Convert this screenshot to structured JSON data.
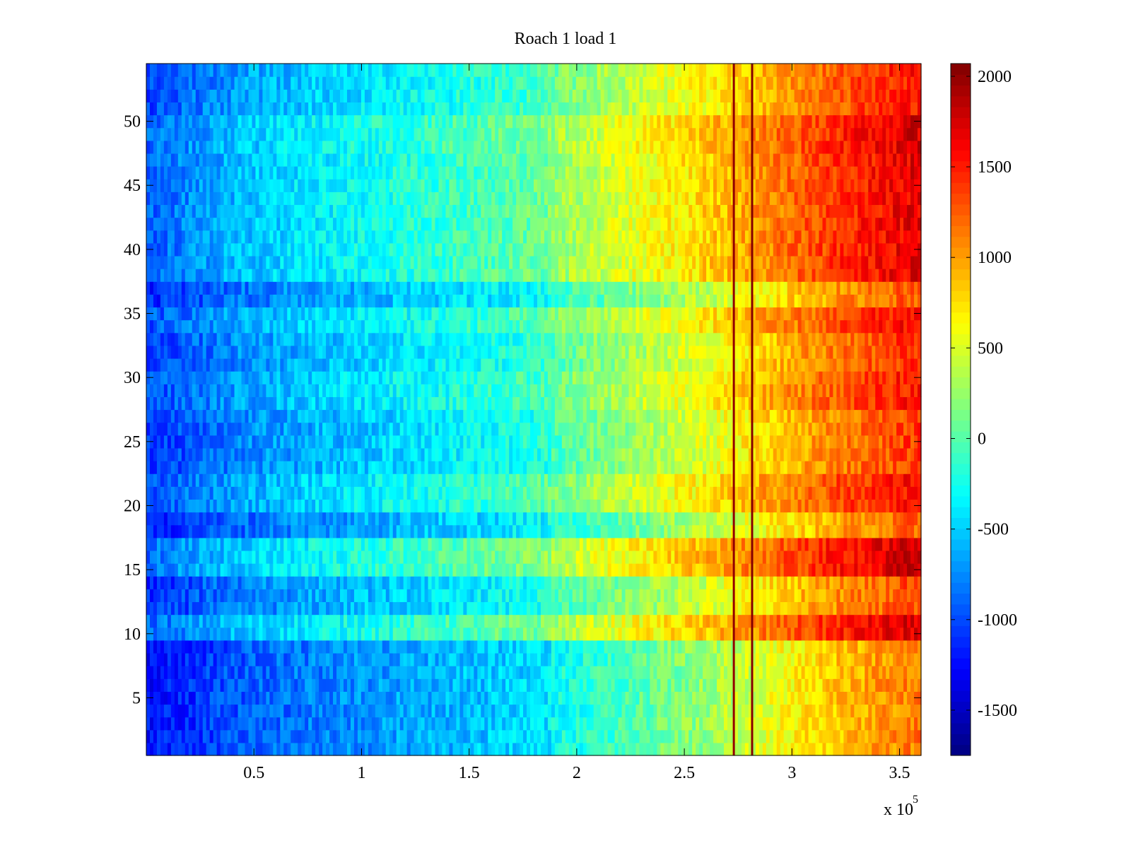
{
  "chart_data": {
    "type": "heatmap",
    "title": "Roach 1 load 1",
    "xlabel": "",
    "ylabel": "",
    "x_range": [
      0,
      360000
    ],
    "y_range": [
      0.5,
      54.5
    ],
    "x_multiplier_label": "x 10",
    "x_multiplier_exponent": "5",
    "x_ticks": [
      {
        "value": 50000,
        "label": "0.5"
      },
      {
        "value": 100000,
        "label": "1"
      },
      {
        "value": 150000,
        "label": "1.5"
      },
      {
        "value": 200000,
        "label": "2"
      },
      {
        "value": 250000,
        "label": "2.5"
      },
      {
        "value": 300000,
        "label": "3"
      },
      {
        "value": 350000,
        "label": "3.5"
      }
    ],
    "y_ticks": [
      {
        "value": 5,
        "label": "5"
      },
      {
        "value": 10,
        "label": "10"
      },
      {
        "value": 15,
        "label": "15"
      },
      {
        "value": 20,
        "label": "20"
      },
      {
        "value": 25,
        "label": "25"
      },
      {
        "value": 30,
        "label": "30"
      },
      {
        "value": 35,
        "label": "35"
      },
      {
        "value": 40,
        "label": "40"
      },
      {
        "value": 45,
        "label": "45"
      },
      {
        "value": 50,
        "label": "50"
      }
    ],
    "colorbar": {
      "colormap": "jet",
      "range": [
        -1750,
        2070
      ],
      "ticks": [
        {
          "value": -1500,
          "label": "-1500"
        },
        {
          "value": -1000,
          "label": "-1000"
        },
        {
          "value": -500,
          "label": "-500"
        },
        {
          "value": 0,
          "label": "0"
        },
        {
          "value": 500,
          "label": "500"
        },
        {
          "value": 1000,
          "label": "1000"
        },
        {
          "value": 1500,
          "label": "1500"
        },
        {
          "value": 2000,
          "label": "2000"
        }
      ]
    },
    "rows": 54,
    "column_profile": {
      "x": [
        0,
        20000,
        40000,
        80000,
        120000,
        160000,
        186000,
        190000,
        220000,
        260000,
        290000,
        320000,
        360000
      ],
      "mean": [
        -1100,
        -950,
        -800,
        -600,
        -450,
        -300,
        -180,
        -50,
        200,
        500,
        800,
        1100,
        1400
      ]
    },
    "row_offsets": [
      {
        "rows": [
          1,
          9
        ],
        "offset": -250
      },
      {
        "rows": [
          10,
          11
        ],
        "offset": 350
      },
      {
        "rows": [
          12,
          14
        ],
        "offset": -50
      },
      {
        "rows": [
          15,
          17
        ],
        "offset": 400
      },
      {
        "rows": [
          18,
          19
        ],
        "offset": -150
      },
      {
        "rows": [
          20,
          22
        ],
        "offset": 200
      },
      {
        "rows": [
          23,
          27
        ],
        "offset": 0
      },
      {
        "rows": [
          28,
          30
        ],
        "offset": 150
      },
      {
        "rows": [
          31,
          33
        ],
        "offset": 50
      },
      {
        "rows": [
          34,
          35
        ],
        "offset": 200
      },
      {
        "rows": [
          36,
          37
        ],
        "offset": -100
      },
      {
        "rows": [
          38,
          47
        ],
        "offset": 300
      },
      {
        "rows": [
          48,
          50
        ],
        "offset": 350
      },
      {
        "rows": [
          51,
          54
        ],
        "offset": 150
      }
    ],
    "spikes": [
      {
        "x": 273000,
        "value": 2000
      },
      {
        "x": 281500,
        "value": 2050
      }
    ]
  }
}
